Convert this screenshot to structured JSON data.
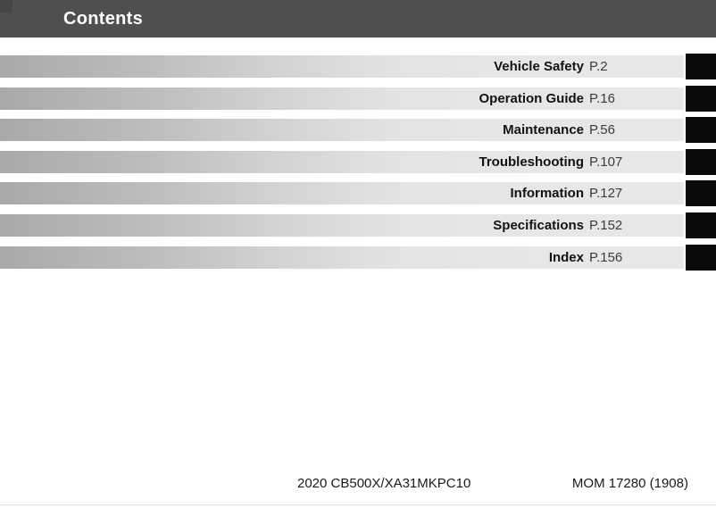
{
  "header": {
    "title": "Contents"
  },
  "toc": {
    "rows": [
      {
        "title": "Vehicle Safety",
        "page": "P.2"
      },
      {
        "title": "Operation Guide",
        "page": "P.16"
      },
      {
        "title": "Maintenance",
        "page": "P.56"
      },
      {
        "title": "Troubleshooting",
        "page": "P.107"
      },
      {
        "title": "Information",
        "page": "P.127"
      },
      {
        "title": "Specifications",
        "page": "P.152"
      },
      {
        "title": "Index",
        "page": "P.156"
      }
    ]
  },
  "footer": {
    "model": "2020 CB500X/XA31MKPC10",
    "code": "MOM 17280 (1908)"
  },
  "colors": {
    "header_bg": "#4f4f4f",
    "header_corner": "#464646",
    "tab_black": "#0a0a0a",
    "bar_gradient_start": "#a9a9a9",
    "bar_gradient_end": "#e7e7e7",
    "title_text": "#121212",
    "page_text": "#3c3c3c"
  }
}
